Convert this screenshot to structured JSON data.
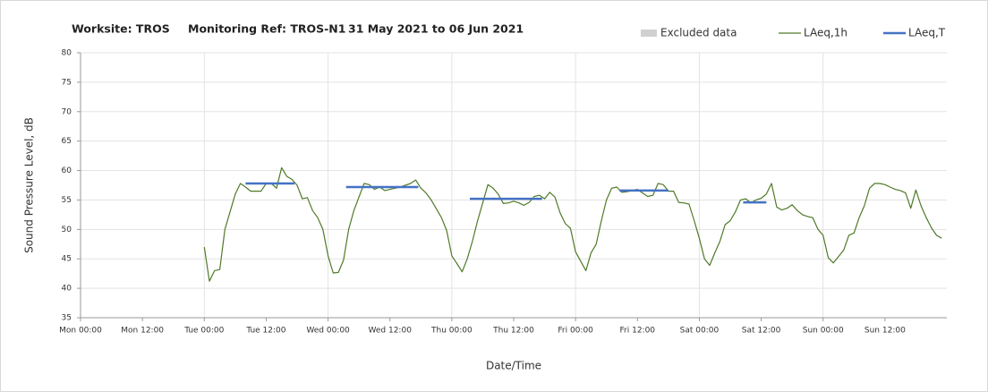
{
  "chart_data": {
    "type": "line",
    "title": [
      "Worksite: TROS",
      "Monitoring Ref: TROS-N1",
      "31 May 2021 to 06 Jun 2021"
    ],
    "xlabel": "Date/Time",
    "ylabel": "Sound Pressure Level, dB",
    "xlim": [
      0,
      168
    ],
    "xticks": [
      {
        "value": 0,
        "label": "Mon 00:00"
      },
      {
        "value": 12,
        "label": "Mon 12:00"
      },
      {
        "value": 24,
        "label": "Tue 00:00"
      },
      {
        "value": 36,
        "label": "Tue 12:00"
      },
      {
        "value": 48,
        "label": "Wed 00:00"
      },
      {
        "value": 60,
        "label": "Wed 12:00"
      },
      {
        "value": 72,
        "label": "Thu 00:00"
      },
      {
        "value": 84,
        "label": "Thu 12:00"
      },
      {
        "value": 96,
        "label": "Fri 00:00"
      },
      {
        "value": 108,
        "label": "Fri 12:00"
      },
      {
        "value": 120,
        "label": "Sat 00:00"
      },
      {
        "value": 132,
        "label": "Sat 12:00"
      },
      {
        "value": 144,
        "label": "Sun 00:00"
      },
      {
        "value": 156,
        "label": "Sun 12:00"
      }
    ],
    "ylim": [
      35,
      80
    ],
    "yticks": [
      35,
      40,
      45,
      50,
      55,
      60,
      65,
      70,
      75,
      80
    ],
    "grid": true,
    "legend": "top-right",
    "series": [
      {
        "name": "Excluded data",
        "color": "#d0d0d0",
        "x": [],
        "values": []
      },
      {
        "name": "LAeq,1h",
        "color": "#4f7a28",
        "x": [
          24,
          25,
          26,
          27,
          28,
          29,
          30,
          31,
          32,
          33,
          34,
          35,
          36,
          37,
          38,
          39,
          40,
          41,
          42,
          43,
          44,
          45,
          46,
          47,
          48,
          49,
          50,
          51,
          52,
          53,
          54,
          55,
          56,
          57,
          58,
          59,
          60,
          61,
          62,
          63,
          64,
          65,
          66,
          67,
          68,
          69,
          70,
          71,
          72,
          73,
          74,
          75,
          76,
          77,
          78,
          79,
          80,
          81,
          82,
          83,
          84,
          85,
          86,
          87,
          88,
          89,
          90,
          91,
          92,
          93,
          94,
          95,
          96,
          97,
          98,
          99,
          100,
          101,
          102,
          103,
          104,
          105,
          106,
          107,
          108,
          109,
          110,
          111,
          112,
          113,
          114,
          115,
          116,
          117,
          118,
          119,
          120,
          121,
          122,
          123,
          124,
          125,
          126,
          127,
          128,
          129,
          130,
          131,
          132,
          133,
          134,
          135,
          136,
          137,
          138,
          139,
          140,
          141,
          142,
          143,
          144,
          145,
          146,
          147,
          148,
          149,
          150,
          151,
          152,
          153,
          154,
          155,
          156,
          157,
          158,
          159,
          160,
          161,
          162,
          163,
          164,
          165,
          166,
          167
        ],
        "values": [
          47,
          41.2,
          43,
          43.2,
          50,
          53,
          56,
          57.8,
          57.2,
          56.5,
          56.5,
          56.5,
          57.8,
          57.8,
          57,
          60.5,
          59,
          58.5,
          57.5,
          55.2,
          55.4,
          53.2,
          52,
          50,
          45.5,
          42.6,
          42.7,
          44.8,
          50,
          53.2,
          55.5,
          57.8,
          57.6,
          56.8,
          57.2,
          56.6,
          56.8,
          57,
          57.2,
          57.5,
          57.8,
          58.4,
          57,
          56.2,
          55,
          53.5,
          52,
          49.8,
          45.5,
          44.2,
          42.8,
          45,
          48,
          51.5,
          54.5,
          57.6,
          57,
          56,
          54.4,
          54.5,
          54.8,
          54.5,
          54.1,
          54.6,
          55.6,
          55.8,
          55.2,
          56.3,
          55.5,
          52.8,
          51,
          50.2,
          46.2,
          44.6,
          43,
          46,
          47.5,
          51.5,
          55,
          57,
          57.2,
          56.3,
          56.4,
          56.6,
          56.8,
          56.2,
          55.6,
          55.8,
          57.8,
          57.6,
          56.5,
          56.5,
          54.6,
          54.5,
          54.3,
          51.5,
          48.5,
          45,
          43.9,
          46,
          48,
          50.8,
          51.5,
          53,
          55,
          55.2,
          54.5,
          55,
          55.3,
          56,
          57.8,
          53.8,
          53.3,
          53.6,
          54.2,
          53.2,
          52.5,
          52.2,
          52,
          50,
          49,
          45.2,
          44.3,
          45.4,
          46.5,
          49,
          49.4,
          52,
          54,
          57,
          57.8,
          57.8,
          57.6,
          57.2,
          56.8,
          56.6,
          56.2,
          53.6,
          56.7,
          54,
          52,
          50.3,
          49,
          48.5
        ]
      },
      {
        "name": "LAeq,T",
        "color": "#4472c4",
        "x": [
          32,
          41.5,
          42,
          51.5,
          65.5,
          66,
          75.5,
          89.5,
          90,
          104.5,
          114,
          115,
          128.5,
          133
        ],
        "values": [
          57.8,
          57.8,
          null,
          57.2,
          57.2,
          null,
          55.2,
          55.2,
          null,
          56.6,
          56.6,
          null,
          54.6,
          54.6
        ]
      }
    ]
  }
}
